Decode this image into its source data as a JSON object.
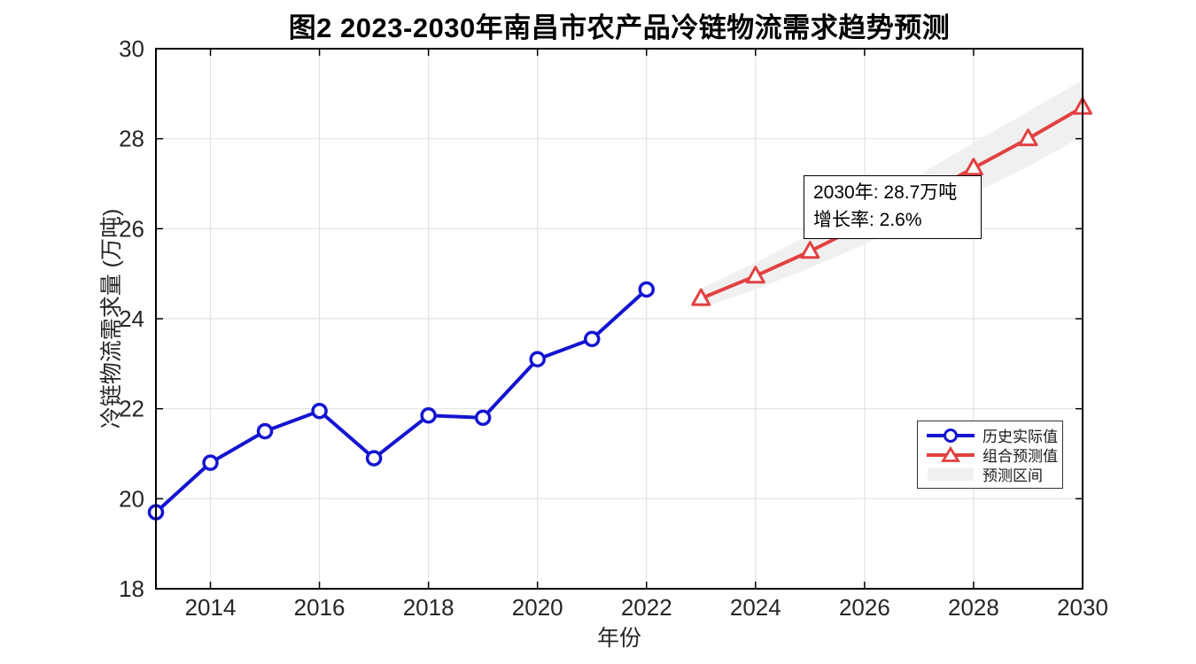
{
  "title": "图2 2023-2030年南昌市农产品冷链物流需求趋势预测",
  "axes": {
    "xlabel": "年份",
    "ylabel": "冷链物流需求量 (万吨)",
    "x_ticks": [
      2014,
      2016,
      2018,
      2020,
      2022,
      2024,
      2026,
      2028,
      2030
    ],
    "y_ticks": [
      18,
      20,
      22,
      24,
      26,
      28,
      30
    ]
  },
  "chart_data": {
    "type": "line",
    "title": "图2 2023-2030年南昌市农产品冷链物流需求趋势预测",
    "xlabel": "年份",
    "ylabel": "冷链物流需求量 (万吨)",
    "xlim": [
      2013,
      2030
    ],
    "ylim": [
      18,
      30
    ],
    "grid": true,
    "legend_position": "inside lower right",
    "series": [
      {
        "name": "历史实际值",
        "color": "#1414d2",
        "marker": "circle",
        "x": [
          2013,
          2014,
          2015,
          2016,
          2017,
          2018,
          2019,
          2020,
          2021,
          2022
        ],
        "values": [
          19.7,
          20.8,
          21.5,
          21.95,
          20.9,
          21.85,
          21.8,
          23.1,
          23.55,
          24.65
        ]
      },
      {
        "name": "组合预测值",
        "color": "#e14140",
        "marker": "triangle",
        "x": [
          2023,
          2024,
          2025,
          2026,
          2027,
          2028,
          2029,
          2030
        ],
        "values": [
          24.45,
          24.95,
          25.5,
          26.1,
          26.7,
          27.35,
          28.0,
          28.7
        ]
      }
    ],
    "band": {
      "name": "预测区间",
      "color": "#f0f0f0",
      "x": [
        2023,
        2024,
        2025,
        2026,
        2027,
        2028,
        2029,
        2030
      ],
      "upper": [
        24.67,
        25.25,
        25.87,
        26.54,
        27.2,
        27.91,
        28.6,
        29.3
      ],
      "lower": [
        24.23,
        24.65,
        25.13,
        25.66,
        26.2,
        26.79,
        27.38,
        28.05
      ]
    },
    "annotations": [
      {
        "year": 2030,
        "text": "2030年: 28.7万吨",
        "growth_text": "增长率: 2.6%"
      }
    ]
  },
  "annotation": {
    "line1": "2030年: 28.7万吨",
    "line2": "增长率: 2.6%"
  },
  "legend": {
    "items": [
      {
        "label": "历史实际值"
      },
      {
        "label": "组合预测值"
      },
      {
        "label": "预测区间"
      }
    ]
  },
  "colors": {
    "historical": "#1414d2",
    "forecast": "#e14140",
    "band": "#f0f0f0",
    "grid": "#e2e2e2",
    "axis": "#000000",
    "tick_label": "#262626"
  }
}
